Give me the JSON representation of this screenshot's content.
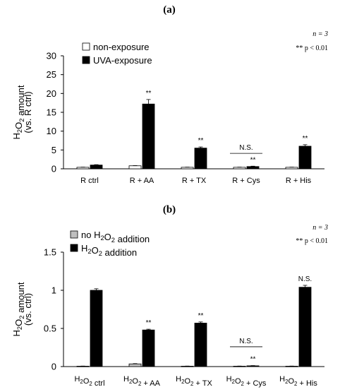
{
  "chart_data": [
    {
      "type": "bar",
      "panel_label": "(a)",
      "stats_n": "n = 3",
      "stats_p": "** p < 0.01",
      "ylabel_line1": "H2O2 amount",
      "ylabel_line2": "(vs. R ctrl)",
      "ylim": [
        0,
        30
      ],
      "yticks": [
        "0",
        "5",
        "10",
        "15",
        "20",
        "25",
        "30"
      ],
      "categories": [
        "R ctrl",
        "R + AA",
        "R + TX",
        "R + Cys",
        "R + His"
      ],
      "legend_position": "top-left",
      "series": [
        {
          "name": "non-exposure",
          "values": [
            0.4,
            0.8,
            0.4,
            0.4,
            0.4
          ],
          "errors": [
            0.05,
            0.05,
            0.05,
            0.05,
            0.05
          ],
          "color": "#ffffff"
        },
        {
          "name": "UVA-exposure",
          "values": [
            1.0,
            17.2,
            5.5,
            0.6,
            6.0
          ],
          "errors": [
            0.1,
            1.2,
            0.3,
            0.1,
            0.4
          ],
          "color": "#000000"
        }
      ],
      "annotations": [
        {
          "label": "**",
          "category": 1
        },
        {
          "label": "**",
          "category": 2
        },
        {
          "label": "**",
          "category": 3
        },
        {
          "label": "**",
          "category": 4
        }
      ],
      "ns_bracket": {
        "label": "N.S.",
        "category": 3
      }
    },
    {
      "type": "bar",
      "panel_label": "(b)",
      "stats_n": "n = 3",
      "stats_p": "** p < 0.01",
      "ylabel_line1": "H2O2 amount",
      "ylabel_line2": "(vs. ctrl)",
      "ylim": [
        0,
        1.5
      ],
      "yticks": [
        "0",
        "0.5",
        "1",
        "1.5"
      ],
      "categories": [
        "H2O2 ctrl",
        "H2O2 + AA",
        "H2O2 + TX",
        "H2O2 + Cys",
        "H2O2 + His"
      ],
      "legend_position": "top-left",
      "series": [
        {
          "name": "no H2O2 addition",
          "values": [
            0.005,
            0.035,
            0.005,
            0.005,
            0.005
          ],
          "errors": [
            0.002,
            0.004,
            0.002,
            0.002,
            0.002
          ],
          "color": "#bfbfbf"
        },
        {
          "name": "H2O2 addition",
          "values": [
            1.0,
            0.48,
            0.57,
            0.01,
            1.04
          ],
          "errors": [
            0.02,
            0.01,
            0.015,
            0.003,
            0.025
          ],
          "color": "#000000"
        }
      ],
      "annotations": [
        {
          "label": "**",
          "category": 1
        },
        {
          "label": "**",
          "category": 2
        },
        {
          "label": "**",
          "category": 3
        },
        {
          "label": "N.S.",
          "category": 4
        }
      ],
      "ns_bracket": {
        "label": "N.S.",
        "category": 3
      }
    }
  ]
}
